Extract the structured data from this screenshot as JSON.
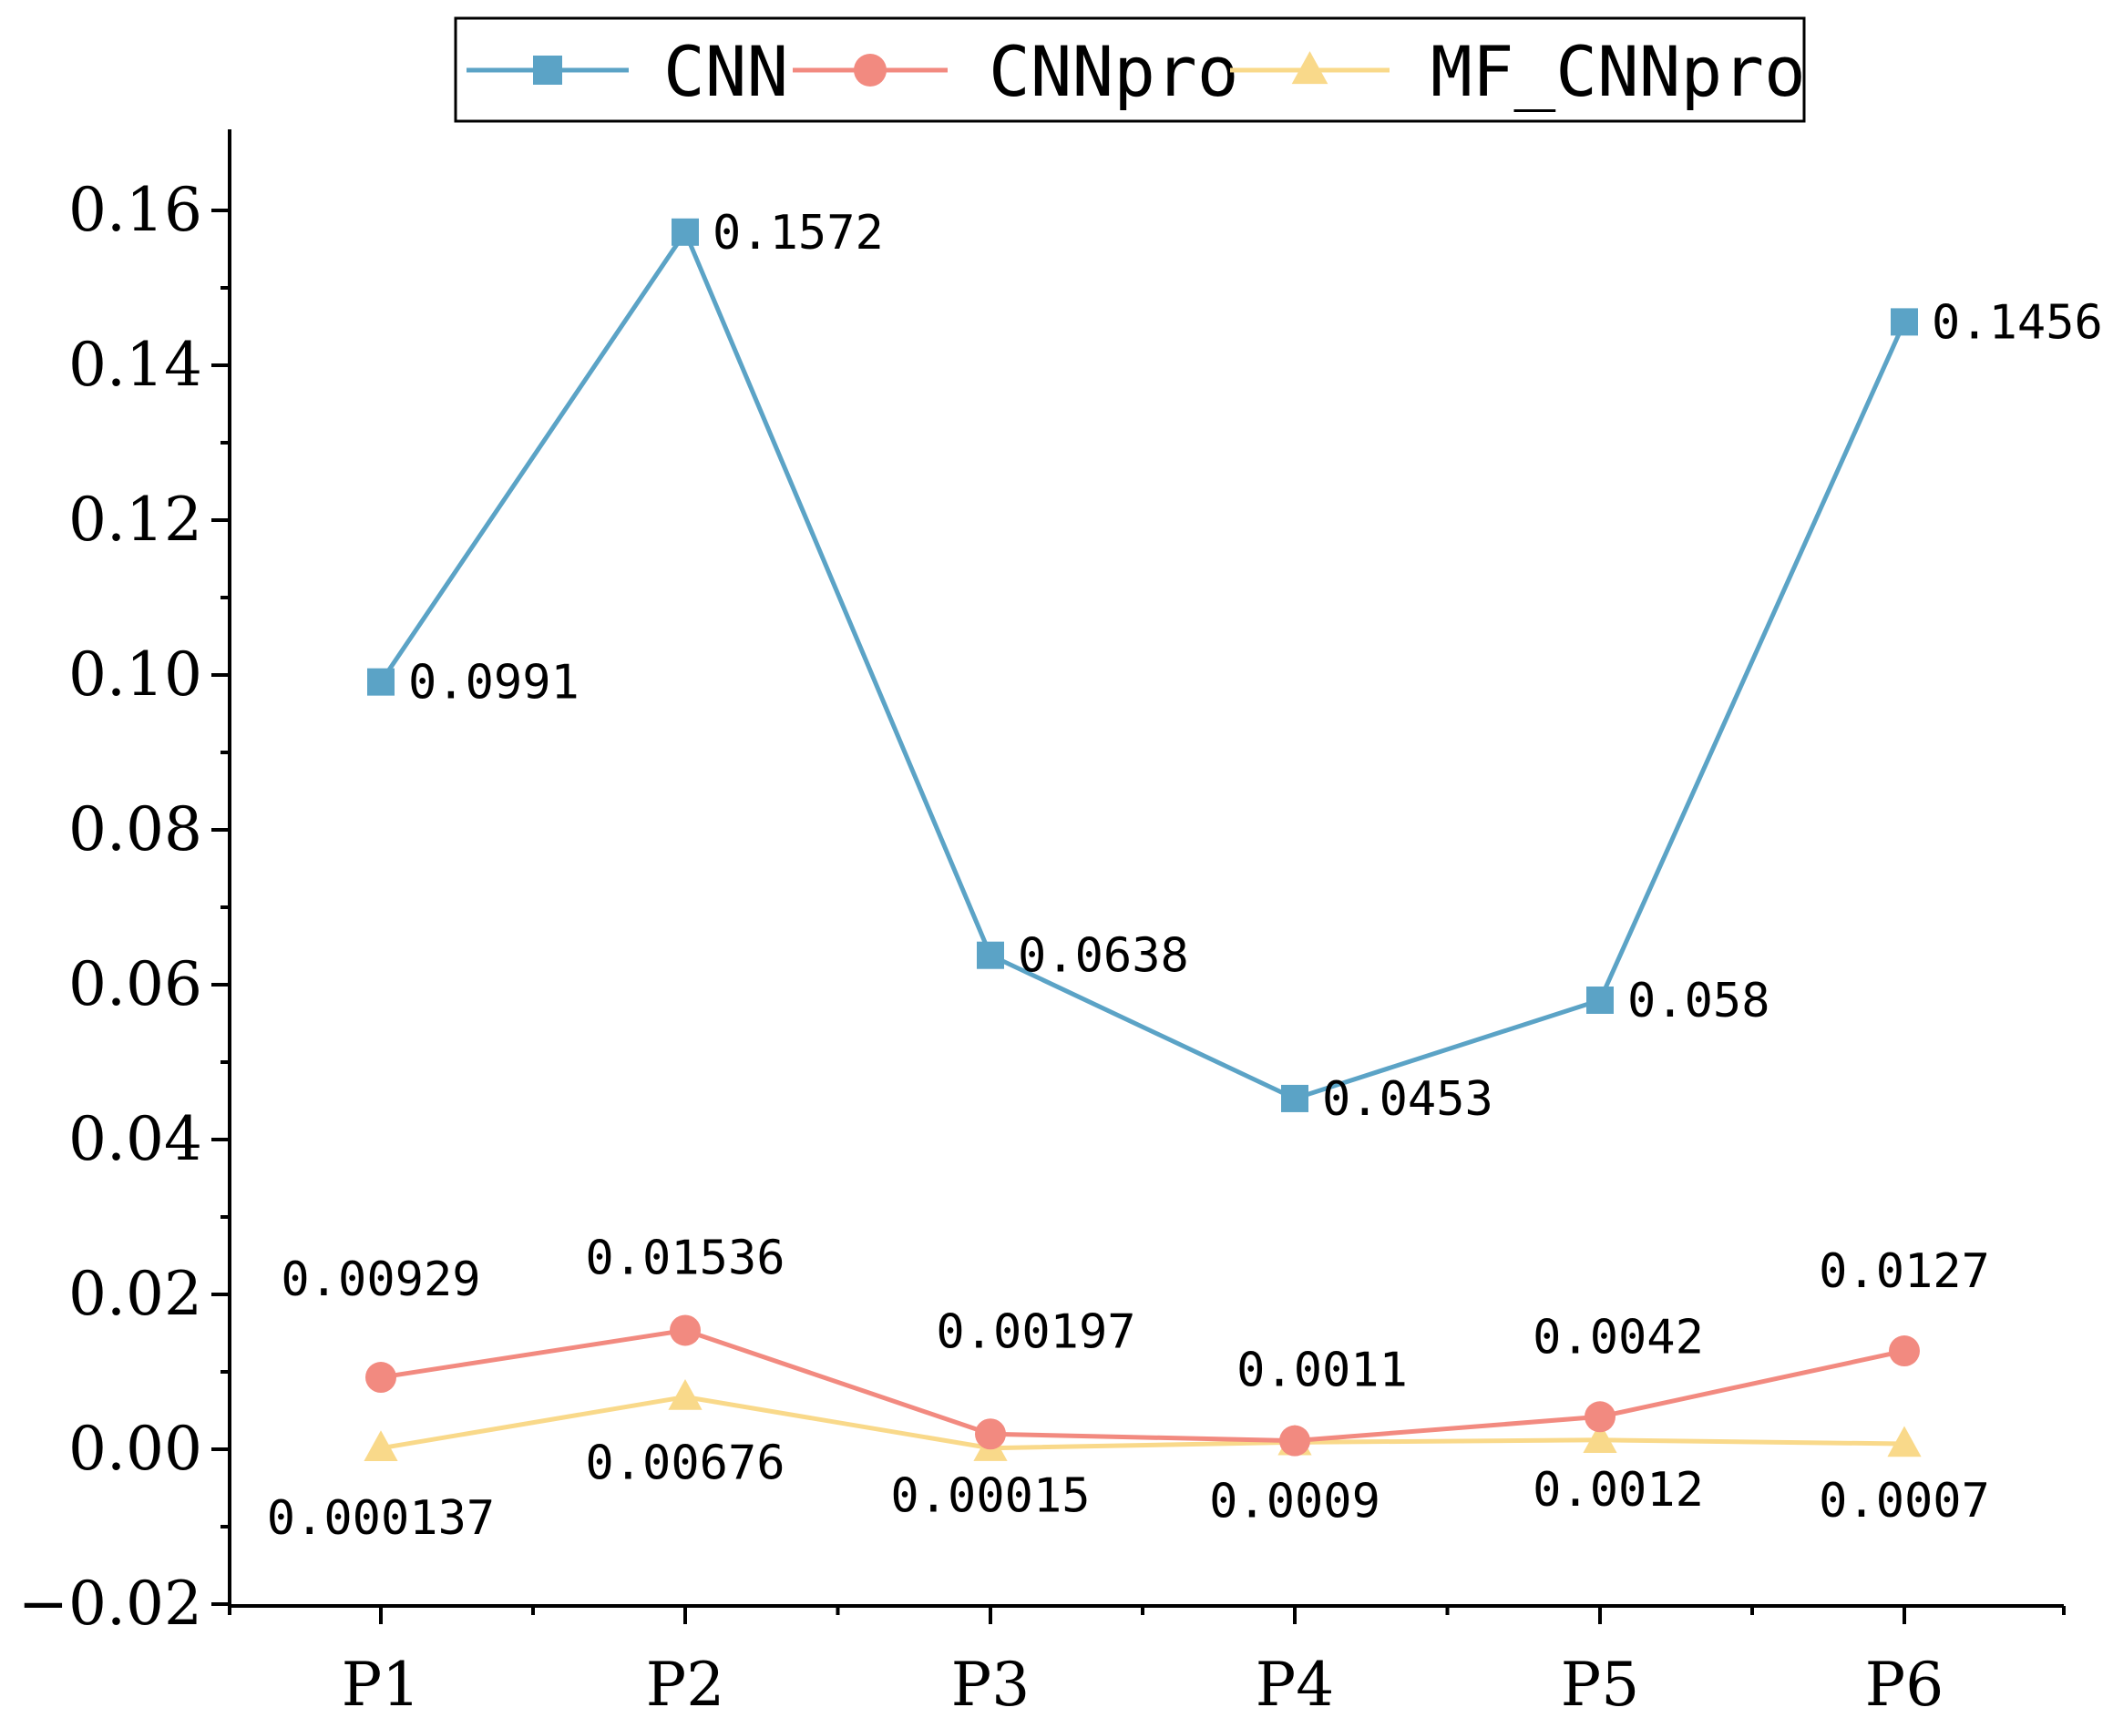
{
  "chart_data": {
    "type": "line",
    "title": "",
    "xlabel": "",
    "ylabel": "",
    "categories": [
      "P1",
      "P2",
      "P3",
      "P4",
      "P5",
      "P6"
    ],
    "ylim": [
      -0.02,
      0.17
    ],
    "yticks": [
      -0.02,
      0.0,
      0.02,
      0.04,
      0.06,
      0.08,
      0.1,
      0.12,
      0.14,
      0.16
    ],
    "ytick_labels": [
      "−0.02",
      "0.00",
      "0.02",
      "0.04",
      "0.06",
      "0.08",
      "0.10",
      "0.12",
      "0.14",
      "0.16"
    ],
    "legend_position": "top",
    "grid": false,
    "series": [
      {
        "name": "CNN",
        "color": "#5ba3c6",
        "marker": "square",
        "values": [
          0.0991,
          0.1572,
          0.0638,
          0.0453,
          0.058,
          0.1456
        ],
        "labels": [
          "0.0991",
          "0.1572",
          "0.0638",
          "0.0453",
          "0.058",
          "0.1456"
        ],
        "label_position": "right"
      },
      {
        "name": "CNNpro",
        "color": "#f28a80",
        "marker": "circle",
        "values": [
          0.00929,
          0.01536,
          0.00197,
          0.0011,
          0.0042,
          0.0127
        ],
        "labels": [
          "0.00929",
          "0.01536",
          "0.00197",
          "0.0011",
          "0.0042",
          "0.0127"
        ],
        "label_position": "above"
      },
      {
        "name": "MF_CNNpro",
        "color": "#f9d98a",
        "marker": "triangle",
        "values": [
          0.000137,
          0.00676,
          0.00015,
          0.0009,
          0.0012,
          0.0007
        ],
        "labels": [
          "0.000137",
          "0.00676",
          "0.00015",
          "0.0009",
          "0.0012",
          "0.0007"
        ],
        "label_position": "below"
      }
    ]
  }
}
